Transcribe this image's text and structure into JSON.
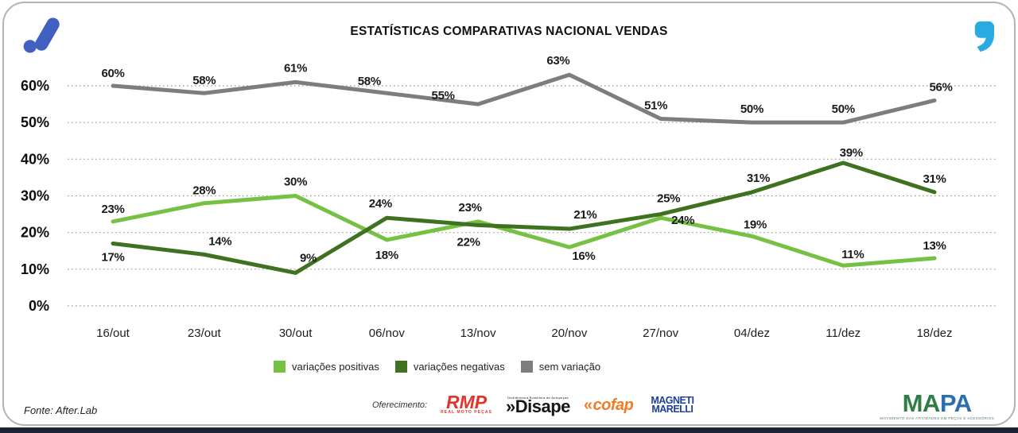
{
  "header": {
    "title": "ESTATÍSTICAS COMPARATIVAS NACIONAL VENDAS"
  },
  "chart_data": {
    "type": "line",
    "title": "ESTATÍSTICAS COMPARATIVAS NACIONAL VENDAS",
    "categories": [
      "16/out",
      "23/out",
      "30/out",
      "06/nov",
      "13/nov",
      "20/nov",
      "27/nov",
      "04/dez",
      "11/dez",
      "18/dez"
    ],
    "series": [
      {
        "name": "variações positivas",
        "color": "#76C043",
        "values": [
          23,
          28,
          30,
          18,
          23,
          16,
          24,
          19,
          11,
          13
        ]
      },
      {
        "name": "variações negativas",
        "color": "#3E7220",
        "values": [
          17,
          14,
          9,
          24,
          22,
          21,
          25,
          31,
          39,
          31
        ]
      },
      {
        "name": "sem variação",
        "color": "#7D7D7D",
        "values": [
          60,
          58,
          61,
          58,
          55,
          63,
          51,
          50,
          50,
          56
        ]
      }
    ],
    "ylim": [
      0,
      60
    ],
    "yticks": [
      "0%",
      "10%",
      "20%",
      "30%",
      "40%",
      "50%",
      "60%"
    ],
    "value_suffix": "%",
    "grid": "horizontal-dotted",
    "legend_position": "bottom"
  },
  "footer": {
    "source": "Fonte: After.Lab",
    "sponsor_label": "Oferecimento:",
    "sponsors": [
      {
        "name": "RMP",
        "subtext": "REAL MOTO PEÇAS",
        "color": "#E2342B"
      },
      {
        "name": "»Disape",
        "subtext": "Distribuidora Brasileira de Autopeças",
        "color": "#151515"
      },
      {
        "name": "cofap",
        "color": "#F47B20"
      },
      {
        "name": "MAGNETI MARELLI",
        "color": "#1C3F9E"
      }
    ],
    "brand": {
      "name": "MAPA",
      "subtext": "MOVIMENTO DAS ATIVIDADES EM PEÇAS E ACESSÓRIOS",
      "colors": [
        "#2E7D46",
        "#2C6FAE"
      ]
    }
  },
  "icons": {
    "top_left": "afterlab-mark-icon",
    "top_right": "quote-icon",
    "accent_blue_dark": "#4161C2",
    "accent_blue_light": "#29ABE2"
  }
}
